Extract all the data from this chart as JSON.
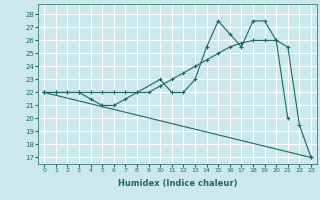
{
  "xlabel": "Humidex (Indice chaleur)",
  "bg_color": "#cce8ec",
  "grid_color": "#ffffff",
  "line_color": "#1a6b5e",
  "xlim": [
    -0.5,
    23.5
  ],
  "ylim": [
    16.5,
    28.8
  ],
  "yticks": [
    17,
    18,
    19,
    20,
    21,
    22,
    23,
    24,
    25,
    26,
    27,
    28
  ],
  "xticks": [
    0,
    1,
    2,
    3,
    4,
    5,
    6,
    7,
    8,
    9,
    10,
    11,
    12,
    13,
    14,
    15,
    16,
    17,
    18,
    19,
    20,
    21,
    22,
    23
  ],
  "line1_x": [
    0,
    1,
    2,
    3,
    4,
    5,
    6,
    7,
    8,
    10,
    11,
    12,
    13,
    14,
    15,
    16,
    17,
    18,
    19,
    20,
    21
  ],
  "line1_y": [
    22,
    22,
    22,
    22,
    21.5,
    21,
    21,
    21.5,
    22,
    23,
    22,
    22,
    23,
    25.5,
    27.5,
    26.5,
    25.5,
    27.5,
    27.5,
    26,
    20
  ],
  "line2_x": [
    0,
    1,
    2,
    3,
    4,
    5,
    6,
    7,
    8,
    9,
    10,
    11,
    12,
    13,
    14,
    15,
    16,
    17,
    18,
    19,
    20,
    21,
    22,
    23
  ],
  "line2_y": [
    22,
    22,
    22,
    22,
    22,
    22,
    22,
    22,
    22,
    22,
    22.5,
    23,
    23.5,
    24,
    24.5,
    25,
    25.5,
    25.8,
    26,
    26,
    26,
    25.5,
    19.5,
    17
  ],
  "line3_x": [
    0,
    23
  ],
  "line3_y": [
    22,
    17
  ]
}
